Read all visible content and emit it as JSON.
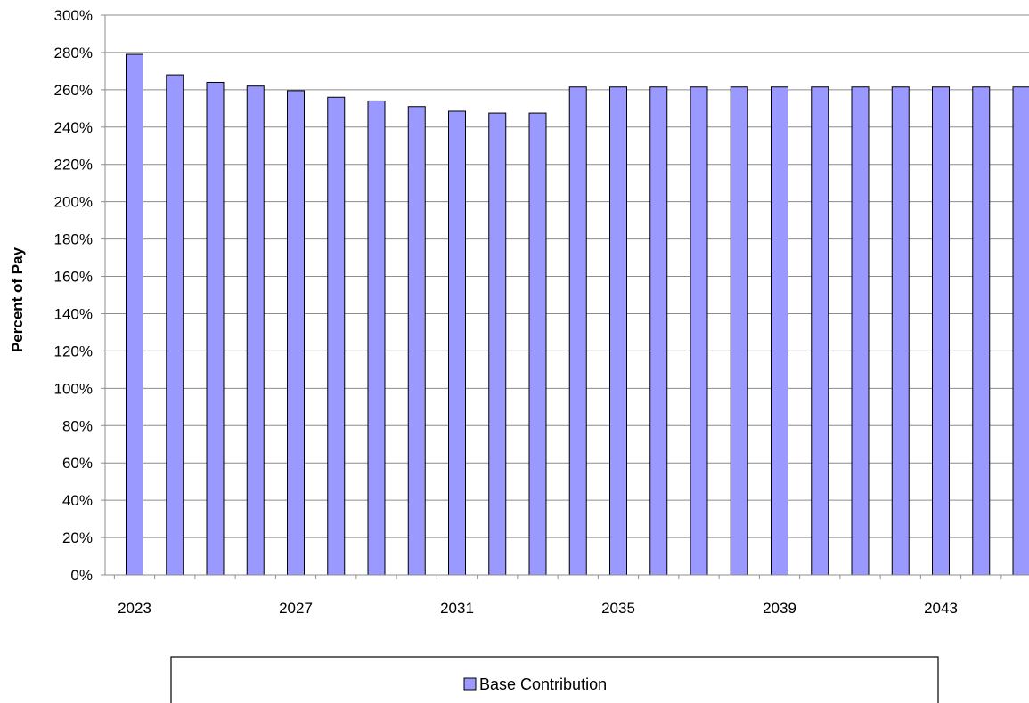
{
  "chart_data": {
    "type": "bar",
    "title": "",
    "xlabel": "",
    "ylabel": "Percent of Pay",
    "ylim": [
      0,
      300
    ],
    "y_tick_step": 20,
    "y_tick_suffix": "%",
    "grid": "horizontal",
    "legend_position": "bottom",
    "categories": [
      "2023",
      "2024",
      "2025",
      "2026",
      "2027",
      "2028",
      "2029",
      "2030",
      "2031",
      "2032",
      "2033",
      "2034",
      "2035",
      "2036",
      "2037",
      "2038",
      "2039",
      "2040",
      "2041",
      "2042",
      "2043",
      "2044",
      "2045"
    ],
    "x_tick_labels": [
      "2023",
      "2027",
      "2031",
      "2035",
      "2039",
      "2043"
    ],
    "series": [
      {
        "name": "Base Contribution",
        "color": "#9999ff",
        "values": [
          279,
          268,
          264,
          262,
          259.5,
          256,
          254,
          251,
          248.5,
          247.5,
          247.5,
          261.5,
          261.5,
          261.5,
          261.5,
          261.5,
          261.5,
          261.5,
          261.5,
          261.5,
          261.5,
          261.5,
          261.5
        ]
      }
    ]
  }
}
